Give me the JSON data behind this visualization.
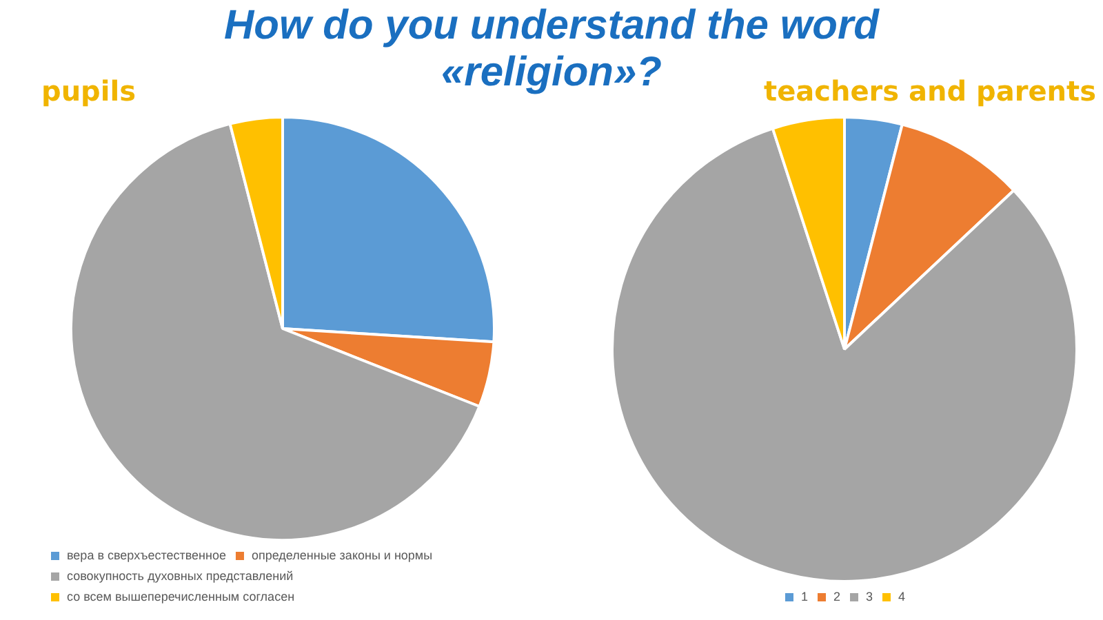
{
  "chart_data": [
    {
      "type": "pie",
      "title": "How do you understand the word «religion»?",
      "subtitle": "pupils",
      "categories": [
        "вера в сверхъестественное",
        "определенные законы и нормы",
        "совокупность духовных представлений",
        "со всем вышеперечисленным согласен"
      ],
      "values": [
        26,
        5,
        65,
        4
      ],
      "colors": [
        "#5b9bd5",
        "#ed7d31",
        "#a5a5a5",
        "#ffc000"
      ],
      "legend": "bottom left"
    },
    {
      "type": "pie",
      "title": "teachers and parents",
      "categories": [
        "1",
        "2",
        "3",
        "4"
      ],
      "values": [
        4,
        9,
        82,
        5
      ],
      "colors": [
        "#5b9bd5",
        "#ed7d31",
        "#a5a5a5",
        "#ffc000"
      ],
      "legend": "bottom"
    }
  ]
}
